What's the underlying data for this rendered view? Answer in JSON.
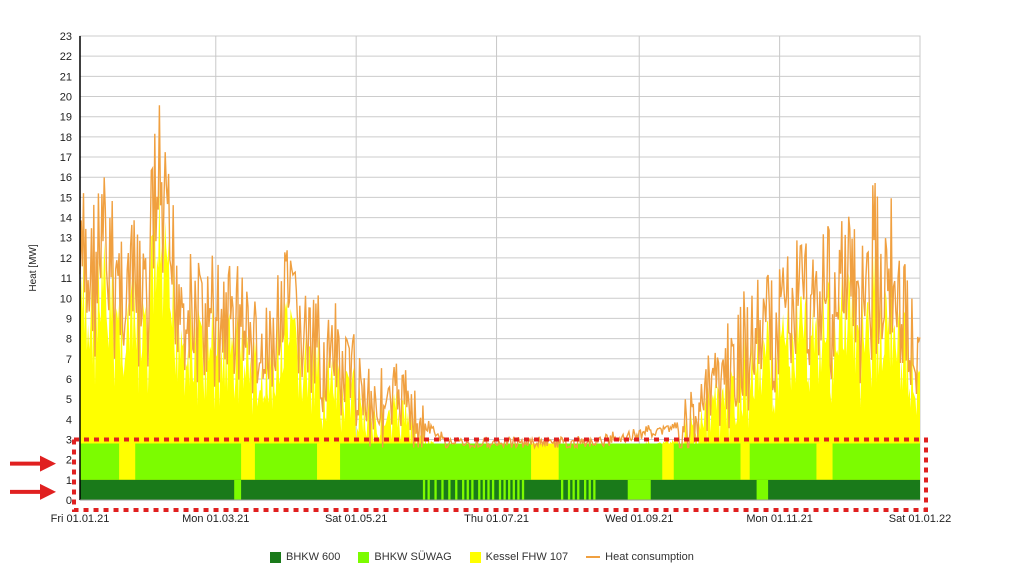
{
  "chart_data": {
    "type": "area",
    "ylabel": "Heat [MW]",
    "ylim": [
      0,
      23
    ],
    "yticks": [
      0,
      1,
      2,
      3,
      4,
      5,
      6,
      7,
      8,
      9,
      10,
      11,
      12,
      13,
      14,
      15,
      16,
      17,
      18,
      19,
      20,
      21,
      22,
      23
    ],
    "x_ticks": [
      {
        "label": "Fri 01.01.21",
        "day": 0
      },
      {
        "label": "Mon 01.03.21",
        "day": 59
      },
      {
        "label": "Sat 01.05.21",
        "day": 120
      },
      {
        "label": "Thu 01.07.21",
        "day": 181
      },
      {
        "label": "Wed 01.09.21",
        "day": 243
      },
      {
        "label": "Mon 01.11.21",
        "day": 304
      },
      {
        "label": "Sat 01.01.22",
        "day": 365
      }
    ],
    "series": [
      {
        "name": "BHKW 600",
        "color": "#1a7a1a",
        "level": 1
      },
      {
        "name": "BHKW SÜWAG",
        "color": "#7cfc00",
        "level": 2
      },
      {
        "name": "Kessel FHW 107",
        "color": "#ffff00"
      },
      {
        "name": "Heat consumption",
        "color": "#f0a040"
      }
    ],
    "heat_consumption_envelope": [
      {
        "day": 0,
        "value": 15
      },
      {
        "day": 10,
        "value": 16
      },
      {
        "day": 20,
        "value": 14
      },
      {
        "day": 30,
        "value": 13
      },
      {
        "day": 32,
        "value": 21
      },
      {
        "day": 40,
        "value": 15
      },
      {
        "day": 50,
        "value": 12
      },
      {
        "day": 60,
        "value": 12
      },
      {
        "day": 70,
        "value": 12
      },
      {
        "day": 80,
        "value": 9
      },
      {
        "day": 90,
        "value": 13
      },
      {
        "day": 100,
        "value": 10
      },
      {
        "day": 110,
        "value": 9
      },
      {
        "day": 120,
        "value": 8
      },
      {
        "day": 130,
        "value": 6
      },
      {
        "day": 140,
        "value": 7
      },
      {
        "day": 150,
        "value": 4
      },
      {
        "day": 160,
        "value": 3
      },
      {
        "day": 181,
        "value": 3
      },
      {
        "day": 220,
        "value": 3
      },
      {
        "day": 243,
        "value": 3.5
      },
      {
        "day": 260,
        "value": 4
      },
      {
        "day": 280,
        "value": 8
      },
      {
        "day": 300,
        "value": 12
      },
      {
        "day": 320,
        "value": 14
      },
      {
        "day": 340,
        "value": 14
      },
      {
        "day": 350,
        "value": 17
      },
      {
        "day": 365,
        "value": 8
      }
    ],
    "bhkw_suewag_off_days": [
      [
        17,
        24
      ],
      [
        70,
        76
      ],
      [
        103,
        113
      ],
      [
        196,
        208
      ],
      [
        253,
        258
      ],
      [
        287,
        291
      ],
      [
        320,
        327
      ]
    ],
    "bhkw_600_off_days": [
      [
        67,
        70
      ],
      [
        149,
        150
      ],
      [
        151,
        152
      ],
      [
        154,
        155
      ],
      [
        157,
        158
      ],
      [
        160,
        161
      ],
      [
        163,
        164
      ],
      [
        166,
        167
      ],
      [
        168,
        169
      ],
      [
        170,
        171
      ],
      [
        173,
        174
      ],
      [
        175,
        176
      ],
      [
        177,
        178
      ],
      [
        179,
        180
      ],
      [
        182,
        183
      ],
      [
        184,
        185
      ],
      [
        186,
        187
      ],
      [
        188,
        189
      ],
      [
        190,
        191
      ],
      [
        192,
        193
      ],
      [
        209,
        210
      ],
      [
        212,
        213
      ],
      [
        214,
        215
      ],
      [
        216,
        217
      ],
      [
        219,
        220
      ],
      [
        221,
        222
      ],
      [
        223,
        224
      ],
      [
        238,
        248
      ],
      [
        294,
        299
      ]
    ]
  },
  "legend": [
    {
      "label": "BHKW 600",
      "color": "#1a7a1a",
      "kind": "box"
    },
    {
      "label": "BHKW SÜWAG",
      "color": "#7cfc00",
      "kind": "box"
    },
    {
      "label": "Kessel FHW 107",
      "color": "#ffff00",
      "kind": "box"
    },
    {
      "label": "Heat consumption",
      "color": "#f0a040",
      "kind": "line"
    }
  ],
  "highlight_color": "#e02020"
}
